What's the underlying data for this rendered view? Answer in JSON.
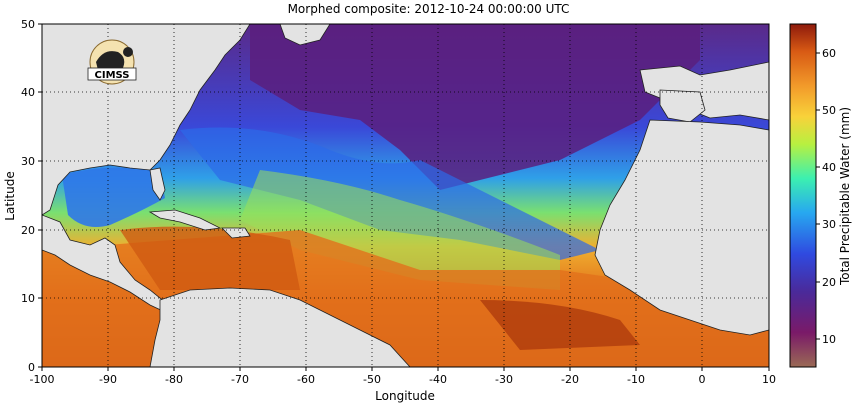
{
  "title": "Morphed composite: 2012-10-24 00:00:00 UTC",
  "map": {
    "xlabel": "Longitude",
    "ylabel": "Latitude",
    "x_ticks": [
      "-100",
      "-90",
      "-80",
      "-70",
      "-60",
      "-50",
      "-40",
      "-30",
      "-20",
      "-10",
      "0",
      "10"
    ],
    "y_ticks": [
      "0",
      "10",
      "20",
      "30",
      "40",
      "50"
    ],
    "lon_range": [
      -100,
      10
    ],
    "lat_range": [
      0,
      50
    ],
    "grid": "dotted"
  },
  "logo": {
    "text": "CIMSS"
  },
  "colorbar": {
    "label": "Total Precipitable Water (mm)",
    "ticks": [
      "10",
      "20",
      "30",
      "40",
      "50",
      "60"
    ],
    "range": [
      5,
      65
    ],
    "colors": [
      "#9a6a55",
      "#7a1a68",
      "#4a2a9a",
      "#2f4ae0",
      "#27a8f0",
      "#3cf0b0",
      "#b8f040",
      "#f8d23a",
      "#f29a2a",
      "#d85a14",
      "#8e1a0c"
    ]
  }
}
